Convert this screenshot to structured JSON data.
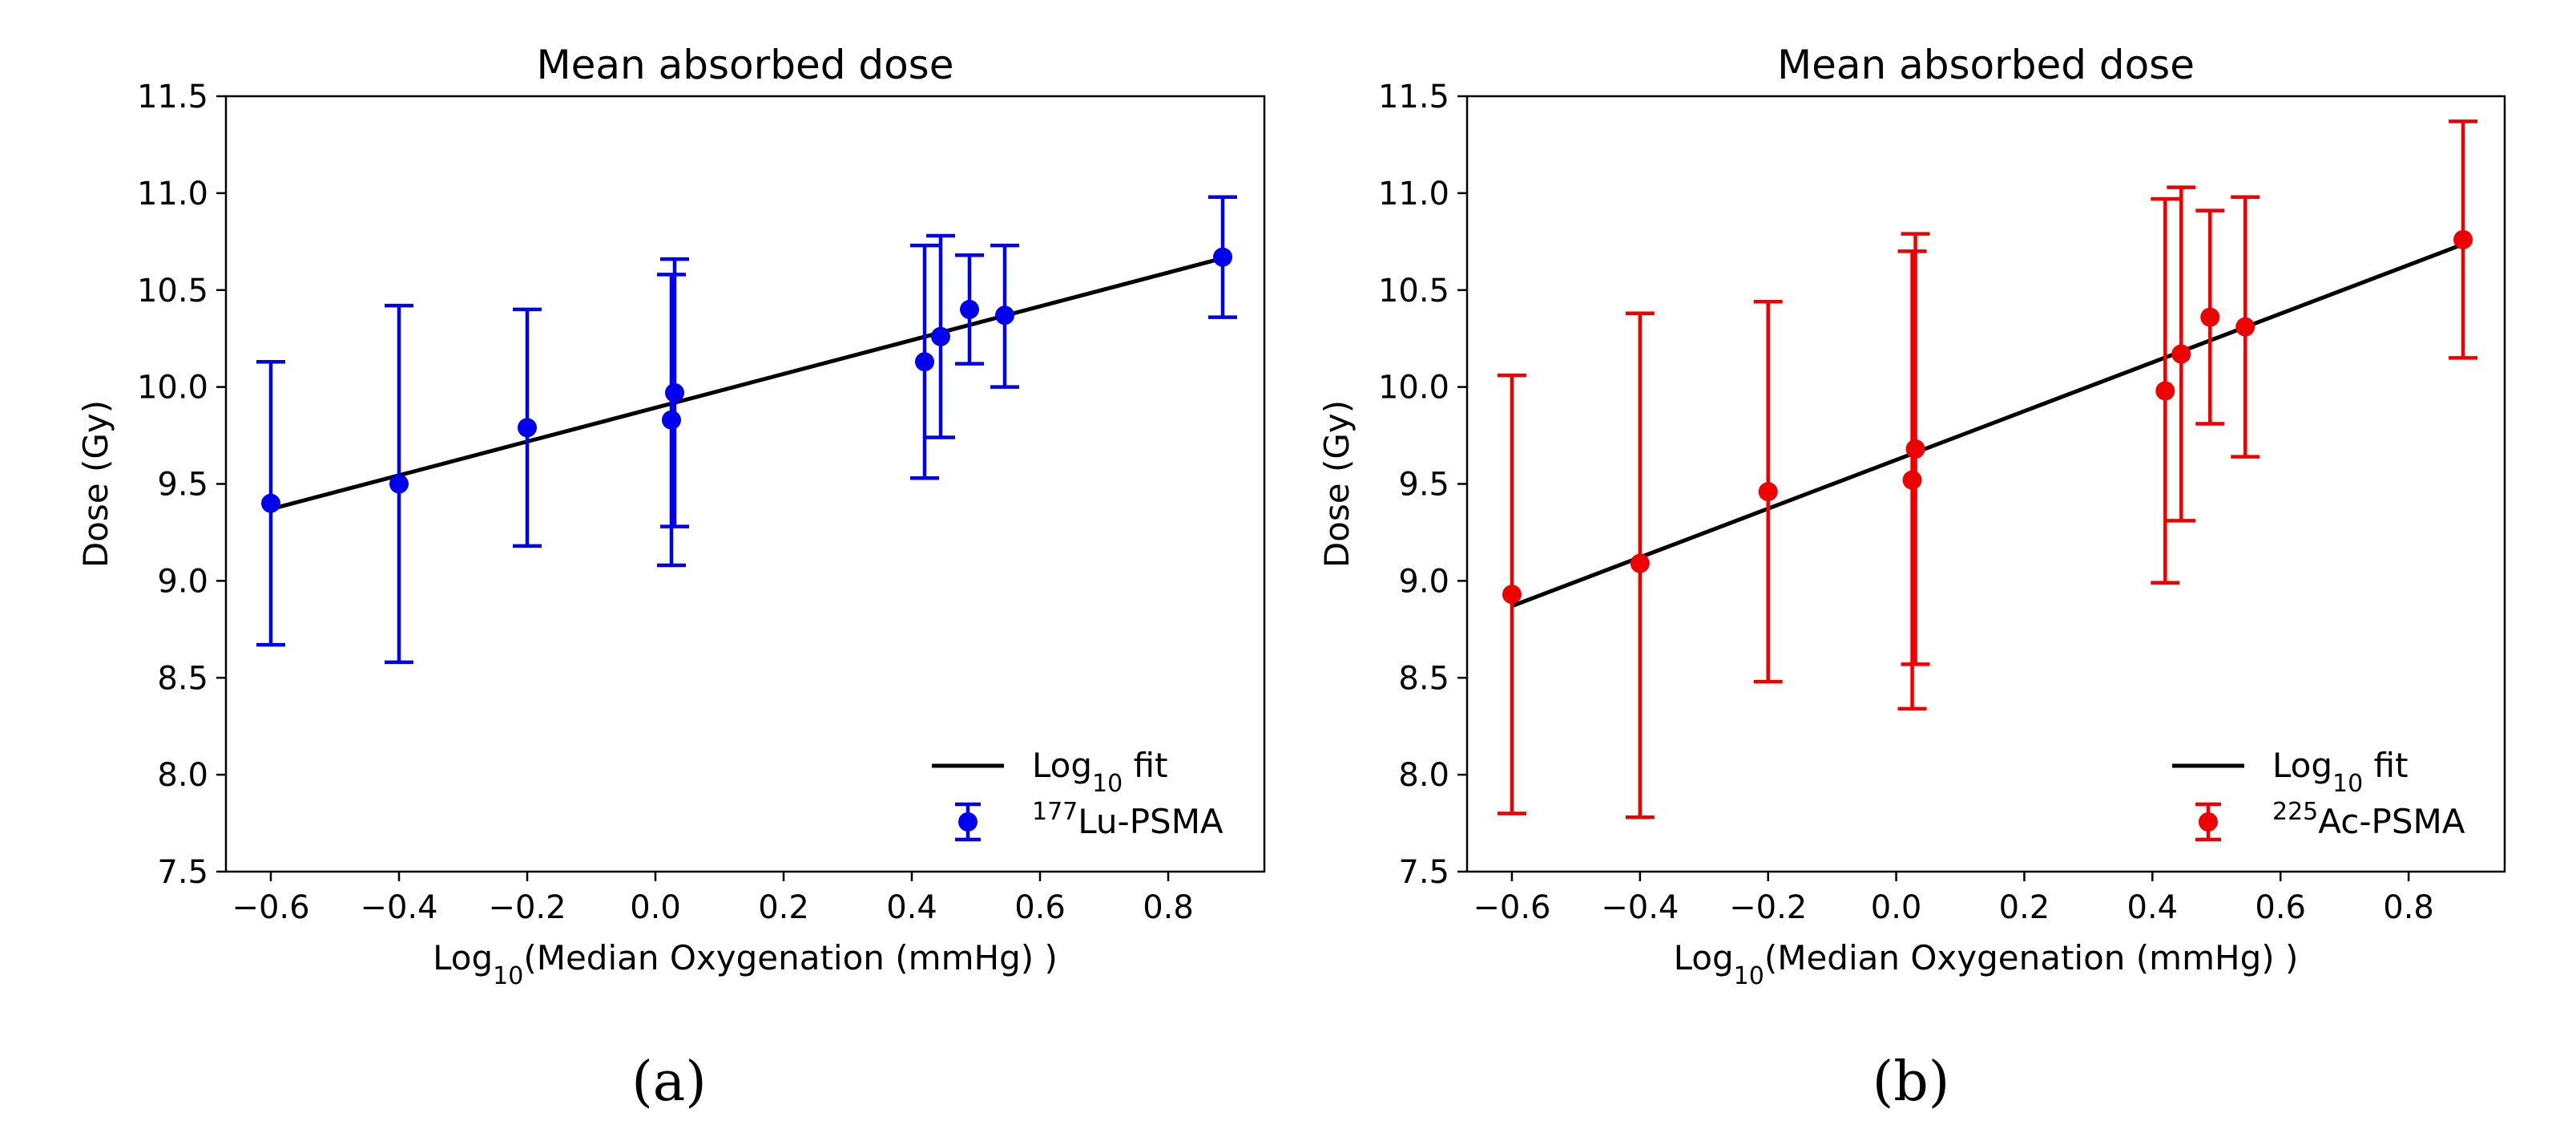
{
  "chart_data": [
    {
      "type": "scatter",
      "panel_label": "(a)",
      "title": "Mean absorbed dose",
      "xlabel_prefix": "Log",
      "xlabel_sub": "10",
      "xlabel_suffix": "(Median Oxygenation (mmHg) )",
      "ylabel": "Dose (Gy)",
      "xlim": [
        -0.67,
        0.95
      ],
      "ylim": [
        7.5,
        11.5
      ],
      "xticks": [
        -0.6,
        -0.4,
        -0.2,
        0.0,
        0.2,
        0.4,
        0.6,
        0.8
      ],
      "xtick_labels": [
        "−0.6",
        "−0.4",
        "−0.2",
        "0.0",
        "0.2",
        "0.4",
        "0.6",
        "0.8"
      ],
      "yticks": [
        7.5,
        8.0,
        8.5,
        9.0,
        9.5,
        10.0,
        10.5,
        11.0,
        11.5
      ],
      "ytick_labels": [
        "7.5",
        "8.0",
        "8.5",
        "9.0",
        "9.5",
        "10.0",
        "10.5",
        "11.0",
        "11.5"
      ],
      "color": "#0000ee",
      "series_name_sup": "177",
      "series_name_text": "Lu-PSMA",
      "fit_label_prefix": "Log",
      "fit_label_sub": "10",
      "fit_label_suffix": " fit",
      "legend_position": "lower-right",
      "fit": {
        "x": [
          -0.6,
          0.88
        ],
        "y": [
          9.37,
          10.66
        ]
      },
      "points": [
        {
          "x": -0.6,
          "y": 9.4,
          "ylo": 8.67,
          "yhi": 10.13
        },
        {
          "x": -0.4,
          "y": 9.5,
          "ylo": 8.58,
          "yhi": 10.42
        },
        {
          "x": -0.2,
          "y": 9.79,
          "ylo": 9.18,
          "yhi": 10.4
        },
        {
          "x": 0.025,
          "y": 9.83,
          "ylo": 9.08,
          "yhi": 10.58
        },
        {
          "x": 0.03,
          "y": 9.97,
          "ylo": 9.28,
          "yhi": 10.66
        },
        {
          "x": 0.42,
          "y": 10.13,
          "ylo": 9.53,
          "yhi": 10.73
        },
        {
          "x": 0.445,
          "y": 10.26,
          "ylo": 9.74,
          "yhi": 10.78
        },
        {
          "x": 0.49,
          "y": 10.4,
          "ylo": 10.12,
          "yhi": 10.68
        },
        {
          "x": 0.545,
          "y": 10.37,
          "ylo": 10.0,
          "yhi": 10.73
        },
        {
          "x": 0.885,
          "y": 10.67,
          "ylo": 10.36,
          "yhi": 10.98
        }
      ]
    },
    {
      "type": "scatter",
      "panel_label": "(b)",
      "title": "Mean absorbed dose",
      "xlabel_prefix": "Log",
      "xlabel_sub": "10",
      "xlabel_suffix": "(Median Oxygenation (mmHg) )",
      "ylabel": "Dose (Gy)",
      "xlim": [
        -0.67,
        0.95
      ],
      "ylim": [
        7.5,
        11.5
      ],
      "xticks": [
        -0.6,
        -0.4,
        -0.2,
        0.0,
        0.2,
        0.4,
        0.6,
        0.8
      ],
      "xtick_labels": [
        "−0.6",
        "−0.4",
        "−0.2",
        "0.0",
        "0.2",
        "0.4",
        "0.6",
        "0.8"
      ],
      "yticks": [
        7.5,
        8.0,
        8.5,
        9.0,
        9.5,
        10.0,
        10.5,
        11.0,
        11.5
      ],
      "ytick_labels": [
        "7.5",
        "8.0",
        "8.5",
        "9.0",
        "9.5",
        "10.0",
        "10.5",
        "11.0",
        "11.5"
      ],
      "color": "#ee0000",
      "series_name_sup": "225",
      "series_name_text": "Ac-PSMA",
      "fit_label_prefix": "Log",
      "fit_label_sub": "10",
      "fit_label_suffix": " fit",
      "legend_position": "lower-right",
      "fit": {
        "x": [
          -0.6,
          0.88
        ],
        "y": [
          8.87,
          10.73
        ]
      },
      "points": [
        {
          "x": -0.6,
          "y": 8.93,
          "ylo": 7.8,
          "yhi": 10.06
        },
        {
          "x": -0.4,
          "y": 9.09,
          "ylo": 7.78,
          "yhi": 10.38
        },
        {
          "x": -0.2,
          "y": 9.46,
          "ylo": 8.48,
          "yhi": 10.44
        },
        {
          "x": 0.025,
          "y": 9.52,
          "ylo": 8.34,
          "yhi": 10.7
        },
        {
          "x": 0.03,
          "y": 9.68,
          "ylo": 8.57,
          "yhi": 10.79
        },
        {
          "x": 0.42,
          "y": 9.98,
          "ylo": 8.99,
          "yhi": 10.97
        },
        {
          "x": 0.445,
          "y": 10.17,
          "ylo": 9.31,
          "yhi": 11.03
        },
        {
          "x": 0.49,
          "y": 10.36,
          "ylo": 9.81,
          "yhi": 10.91
        },
        {
          "x": 0.545,
          "y": 10.31,
          "ylo": 9.64,
          "yhi": 10.98
        },
        {
          "x": 0.885,
          "y": 10.76,
          "ylo": 10.15,
          "yhi": 11.37
        }
      ]
    }
  ]
}
